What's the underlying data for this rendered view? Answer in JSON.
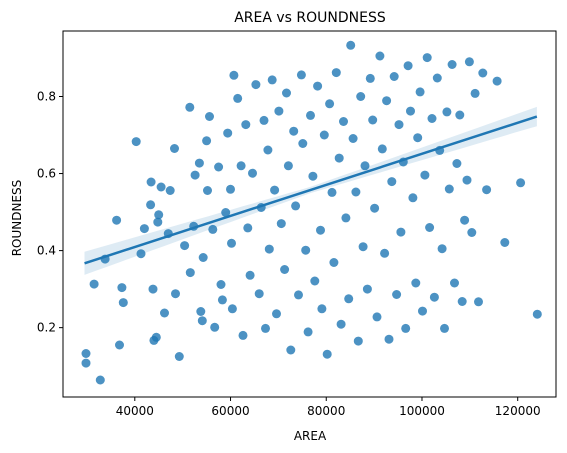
{
  "chart_data": {
    "type": "scatter",
    "title": "AREA vs ROUNDNESS",
    "xlabel": "AREA",
    "ylabel": "ROUNDNESS",
    "xlim": [
      25000,
      128000
    ],
    "ylim": [
      0.02,
      0.97
    ],
    "xticks": [
      40000,
      60000,
      80000,
      100000,
      120000
    ],
    "yticks": [
      0.2,
      0.4,
      0.6,
      0.8
    ],
    "grid": false,
    "legend": "none",
    "point_color": "#1f77b4",
    "point_alpha": 0.8,
    "regression": {
      "line_color": "#1f77b4",
      "band_color": "#1f77b4",
      "x0": 29500,
      "y0": 0.367,
      "x1": 124000,
      "y1": 0.748,
      "band_halfwidth": [
        0.03,
        0.008,
        0.025
      ]
    },
    "points": [
      [
        29800,
        0.133
      ],
      [
        29800,
        0.108
      ],
      [
        31500,
        0.313
      ],
      [
        32800,
        0.064
      ],
      [
        33800,
        0.378
      ],
      [
        36200,
        0.479
      ],
      [
        36800,
        0.155
      ],
      [
        37300,
        0.304
      ],
      [
        37600,
        0.265
      ],
      [
        40300,
        0.683
      ],
      [
        41300,
        0.392
      ],
      [
        42000,
        0.457
      ],
      [
        43300,
        0.519
      ],
      [
        43400,
        0.578
      ],
      [
        43800,
        0.3
      ],
      [
        44000,
        0.167
      ],
      [
        44500,
        0.175
      ],
      [
        44800,
        0.474
      ],
      [
        45000,
        0.493
      ],
      [
        45500,
        0.565
      ],
      [
        46200,
        0.238
      ],
      [
        47000,
        0.444
      ],
      [
        47400,
        0.556
      ],
      [
        48300,
        0.665
      ],
      [
        48500,
        0.288
      ],
      [
        49300,
        0.125
      ],
      [
        50400,
        0.413
      ],
      [
        51600,
        0.343
      ],
      [
        51500,
        0.772
      ],
      [
        52300,
        0.463
      ],
      [
        52600,
        0.596
      ],
      [
        53500,
        0.627
      ],
      [
        53800,
        0.242
      ],
      [
        54100,
        0.218
      ],
      [
        54300,
        0.382
      ],
      [
        55000,
        0.685
      ],
      [
        55200,
        0.556
      ],
      [
        55600,
        0.748
      ],
      [
        56300,
        0.455
      ],
      [
        56700,
        0.201
      ],
      [
        57500,
        0.617
      ],
      [
        58000,
        0.312
      ],
      [
        58300,
        0.272
      ],
      [
        59000,
        0.499
      ],
      [
        59400,
        0.705
      ],
      [
        60000,
        0.559
      ],
      [
        60200,
        0.419
      ],
      [
        60400,
        0.249
      ],
      [
        60700,
        0.855
      ],
      [
        61500,
        0.795
      ],
      [
        62200,
        0.62
      ],
      [
        62600,
        0.18
      ],
      [
        63200,
        0.727
      ],
      [
        63600,
        0.459
      ],
      [
        64100,
        0.336
      ],
      [
        64600,
        0.601
      ],
      [
        65300,
        0.831
      ],
      [
        66000,
        0.288
      ],
      [
        66400,
        0.512
      ],
      [
        67000,
        0.738
      ],
      [
        67300,
        0.198
      ],
      [
        67800,
        0.661
      ],
      [
        68100,
        0.404
      ],
      [
        68700,
        0.843
      ],
      [
        69200,
        0.557
      ],
      [
        69600,
        0.236
      ],
      [
        70100,
        0.762
      ],
      [
        70600,
        0.47
      ],
      [
        71300,
        0.351
      ],
      [
        71700,
        0.809
      ],
      [
        72100,
        0.62
      ],
      [
        72600,
        0.142
      ],
      [
        73200,
        0.71
      ],
      [
        73600,
        0.516
      ],
      [
        74200,
        0.285
      ],
      [
        74800,
        0.856
      ],
      [
        75100,
        0.678
      ],
      [
        75700,
        0.401
      ],
      [
        76200,
        0.189
      ],
      [
        76700,
        0.751
      ],
      [
        77200,
        0.593
      ],
      [
        77600,
        0.321
      ],
      [
        78200,
        0.827
      ],
      [
        78800,
        0.453
      ],
      [
        79100,
        0.249
      ],
      [
        79600,
        0.7
      ],
      [
        80200,
        0.131
      ],
      [
        80700,
        0.781
      ],
      [
        81200,
        0.551
      ],
      [
        81600,
        0.369
      ],
      [
        82100,
        0.862
      ],
      [
        82700,
        0.64
      ],
      [
        83100,
        0.209
      ],
      [
        83600,
        0.735
      ],
      [
        84100,
        0.485
      ],
      [
        84700,
        0.275
      ],
      [
        85100,
        0.933
      ],
      [
        85600,
        0.691
      ],
      [
        86200,
        0.552
      ],
      [
        86700,
        0.165
      ],
      [
        87200,
        0.8
      ],
      [
        87700,
        0.41
      ],
      [
        88100,
        0.62
      ],
      [
        88600,
        0.3
      ],
      [
        89200,
        0.847
      ],
      [
        89700,
        0.739
      ],
      [
        90100,
        0.51
      ],
      [
        90600,
        0.228
      ],
      [
        91200,
        0.905
      ],
      [
        91700,
        0.664
      ],
      [
        92200,
        0.393
      ],
      [
        92600,
        0.789
      ],
      [
        93100,
        0.17
      ],
      [
        93700,
        0.579
      ],
      [
        94200,
        0.852
      ],
      [
        94700,
        0.286
      ],
      [
        95200,
        0.727
      ],
      [
        95600,
        0.448
      ],
      [
        96100,
        0.63
      ],
      [
        96600,
        0.198
      ],
      [
        97100,
        0.88
      ],
      [
        97600,
        0.762
      ],
      [
        98100,
        0.537
      ],
      [
        98700,
        0.316
      ],
      [
        99100,
        0.693
      ],
      [
        99600,
        0.812
      ],
      [
        100100,
        0.243
      ],
      [
        100600,
        0.596
      ],
      [
        101100,
        0.901
      ],
      [
        101600,
        0.46
      ],
      [
        102100,
        0.743
      ],
      [
        102600,
        0.279
      ],
      [
        103200,
        0.848
      ],
      [
        103700,
        0.66
      ],
      [
        104200,
        0.405
      ],
      [
        104700,
        0.198
      ],
      [
        105200,
        0.76
      ],
      [
        105700,
        0.56
      ],
      [
        106300,
        0.883
      ],
      [
        106800,
        0.316
      ],
      [
        107300,
        0.626
      ],
      [
        107900,
        0.752
      ],
      [
        108400,
        0.268
      ],
      [
        108900,
        0.479
      ],
      [
        109400,
        0.583
      ],
      [
        109900,
        0.89
      ],
      [
        110400,
        0.447
      ],
      [
        111100,
        0.808
      ],
      [
        111800,
        0.267
      ],
      [
        112700,
        0.861
      ],
      [
        113500,
        0.558
      ],
      [
        115700,
        0.84
      ],
      [
        117300,
        0.421
      ],
      [
        120600,
        0.576
      ],
      [
        124100,
        0.235
      ]
    ]
  }
}
